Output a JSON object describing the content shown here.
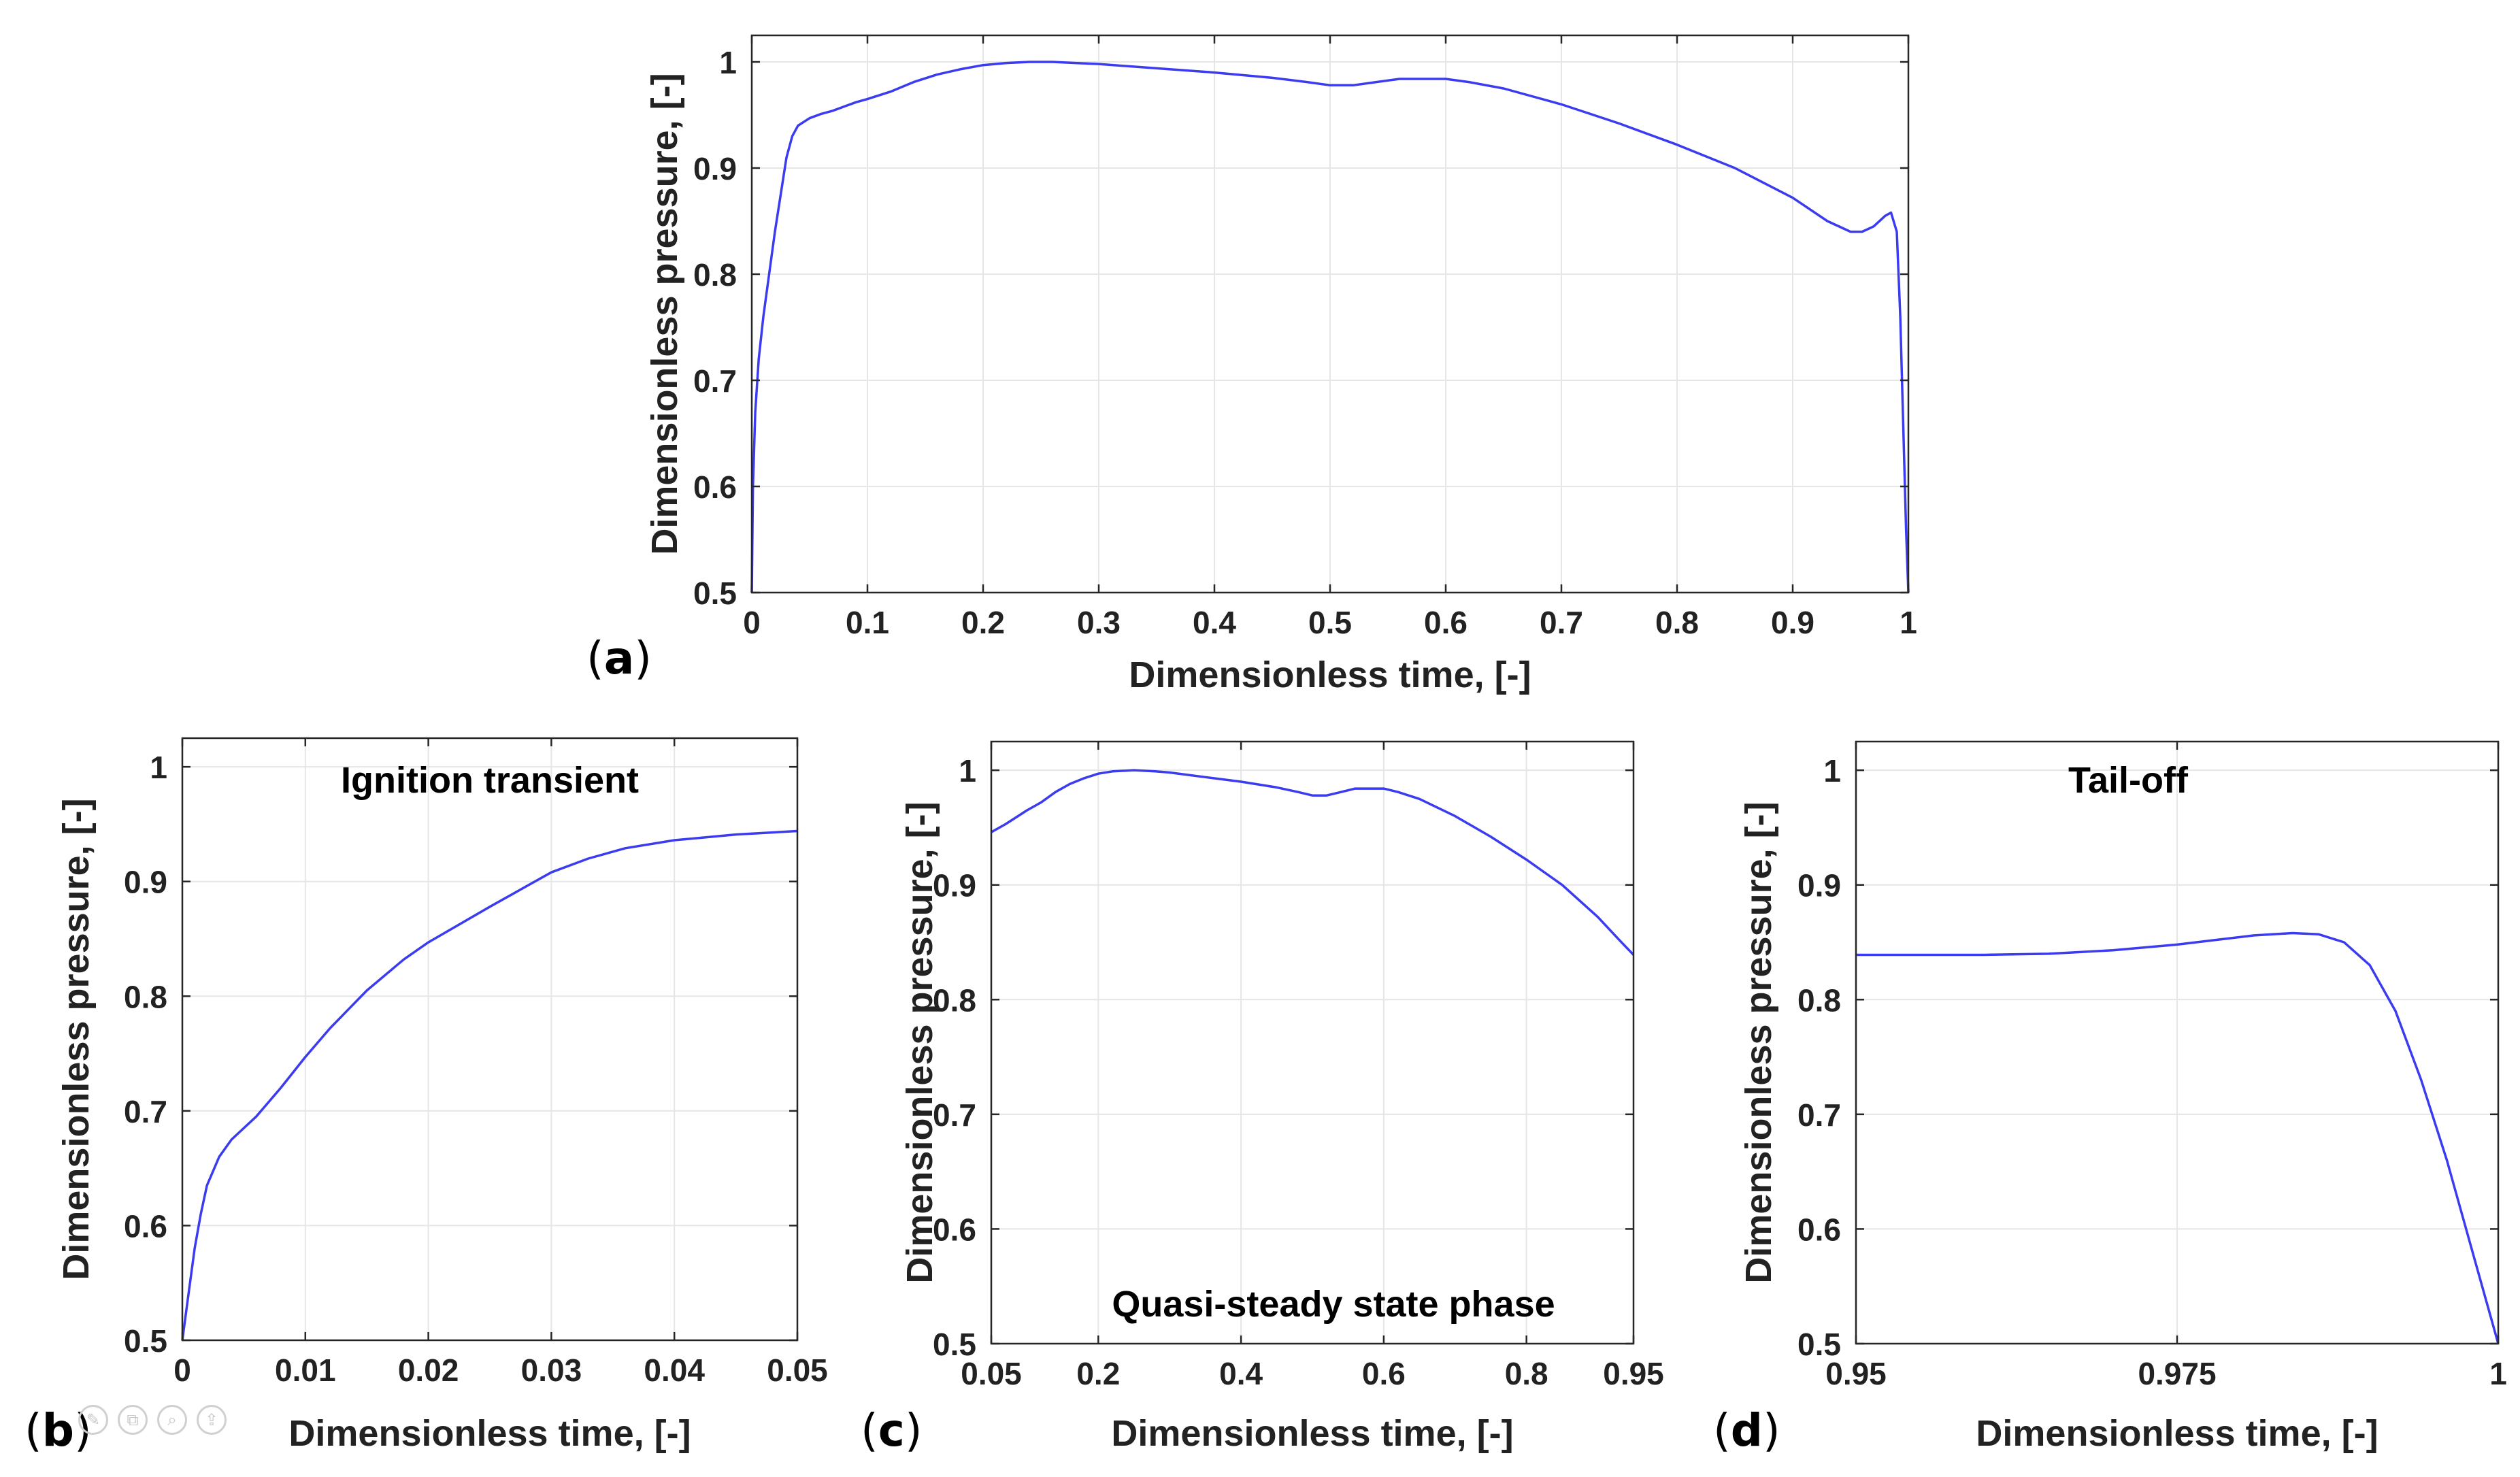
{
  "chart_data": [
    {
      "id": "a",
      "type": "line",
      "panel_label": "a",
      "title": "",
      "xlabel": "Dimensionless time, [-]",
      "ylabel": "Dimensionless pressure, [-]",
      "xlim": [
        0,
        1
      ],
      "ylim": [
        0.5,
        1.025
      ],
      "xticks": [
        0,
        0.1,
        0.2,
        0.3,
        0.4,
        0.5,
        0.6,
        0.7,
        0.8,
        0.9,
        1
      ],
      "xtick_labels": [
        "0",
        "0.1",
        "0.2",
        "0.3",
        "0.4",
        "0.5",
        "0.6",
        "0.7",
        "0.8",
        "0.9",
        "1"
      ],
      "yticks": [
        0.5,
        0.6,
        0.7,
        0.8,
        0.9,
        1
      ],
      "ytick_labels": [
        "0.5",
        "0.6",
        "0.7",
        "0.8",
        "0.9",
        "1"
      ],
      "grid": true,
      "annotation": "",
      "series": [
        {
          "name": "Dimensionless pressure",
          "color": "#3b3bf0",
          "x": [
            0,
            0.001,
            0.003,
            0.006,
            0.01,
            0.015,
            0.02,
            0.025,
            0.03,
            0.035,
            0.04,
            0.05,
            0.06,
            0.07,
            0.08,
            0.09,
            0.1,
            0.12,
            0.14,
            0.16,
            0.18,
            0.2,
            0.22,
            0.24,
            0.26,
            0.28,
            0.3,
            0.35,
            0.4,
            0.45,
            0.48,
            0.5,
            0.52,
            0.54,
            0.56,
            0.6,
            0.62,
            0.65,
            0.7,
            0.75,
            0.8,
            0.85,
            0.9,
            0.93,
            0.95,
            0.96,
            0.97,
            0.98,
            0.985,
            0.99,
            0.993,
            0.996,
            0.998,
            1.0
          ],
          "y": [
            0.5,
            0.6,
            0.67,
            0.72,
            0.76,
            0.8,
            0.84,
            0.875,
            0.91,
            0.93,
            0.94,
            0.947,
            0.951,
            0.954,
            0.958,
            0.962,
            0.965,
            0.972,
            0.981,
            0.988,
            0.993,
            0.997,
            0.999,
            1.0,
            1.0,
            0.999,
            0.998,
            0.994,
            0.99,
            0.985,
            0.981,
            0.978,
            0.978,
            0.981,
            0.984,
            0.984,
            0.981,
            0.975,
            0.96,
            0.942,
            0.922,
            0.9,
            0.872,
            0.85,
            0.84,
            0.84,
            0.845,
            0.855,
            0.858,
            0.84,
            0.76,
            0.64,
            0.56,
            0.5
          ]
        }
      ]
    },
    {
      "id": "b",
      "type": "line",
      "panel_label": "b",
      "title": "",
      "xlabel": "Dimensionless time, [-]",
      "ylabel": "Dimensionless pressure, [-]",
      "xlim": [
        0,
        0.05
      ],
      "ylim": [
        0.5,
        1.025
      ],
      "xticks": [
        0,
        0.01,
        0.02,
        0.03,
        0.04,
        0.05
      ],
      "xtick_labels": [
        "0",
        "0.01",
        "0.02",
        "0.03",
        "0.04",
        "0.05"
      ],
      "yticks": [
        0.5,
        0.6,
        0.7,
        0.8,
        0.9,
        1
      ],
      "ytick_labels": [
        "0.5",
        "0.6",
        "0.7",
        "0.8",
        "0.9",
        "1"
      ],
      "grid": true,
      "annotation": "Ignition transient",
      "series": [
        {
          "name": "Dimensionless pressure",
          "color": "#3b3bf0",
          "x": [
            0,
            0.0005,
            0.001,
            0.0015,
            0.002,
            0.003,
            0.004,
            0.005,
            0.006,
            0.008,
            0.01,
            0.012,
            0.015,
            0.018,
            0.02,
            0.025,
            0.03,
            0.033,
            0.036,
            0.04,
            0.045,
            0.05
          ],
          "y": [
            0.5,
            0.54,
            0.58,
            0.61,
            0.635,
            0.66,
            0.675,
            0.685,
            0.695,
            0.72,
            0.747,
            0.772,
            0.805,
            0.832,
            0.847,
            0.878,
            0.908,
            0.92,
            0.929,
            0.936,
            0.941,
            0.944
          ]
        }
      ]
    },
    {
      "id": "c",
      "type": "line",
      "panel_label": "c",
      "title": "",
      "xlabel": "Dimensionless time, [-]",
      "ylabel": "Dimensionless pressure, [-]",
      "xlim": [
        0.05,
        0.95
      ],
      "ylim": [
        0.5,
        1.025
      ],
      "xticks": [
        0.05,
        0.2,
        0.4,
        0.6,
        0.8,
        0.95
      ],
      "xtick_labels": [
        "0.05",
        "0.2",
        "0.4",
        "0.6",
        "0.8",
        "0.95"
      ],
      "yticks": [
        0.5,
        0.6,
        0.7,
        0.8,
        0.9,
        1
      ],
      "ytick_labels": [
        "0.5",
        "0.6",
        "0.7",
        "0.8",
        "0.9",
        "1"
      ],
      "grid": true,
      "annotation": "Quasi-steady state phase",
      "series": [
        {
          "name": "Dimensionless pressure",
          "color": "#3b3bf0",
          "x": [
            0.05,
            0.07,
            0.08,
            0.1,
            0.12,
            0.14,
            0.16,
            0.18,
            0.2,
            0.22,
            0.25,
            0.28,
            0.3,
            0.35,
            0.4,
            0.45,
            0.48,
            0.5,
            0.52,
            0.54,
            0.56,
            0.6,
            0.62,
            0.65,
            0.7,
            0.75,
            0.8,
            0.85,
            0.9,
            0.93,
            0.95
          ],
          "y": [
            0.946,
            0.953,
            0.957,
            0.965,
            0.972,
            0.981,
            0.988,
            0.993,
            0.997,
            0.999,
            1.0,
            0.999,
            0.998,
            0.994,
            0.99,
            0.985,
            0.981,
            0.978,
            0.978,
            0.981,
            0.984,
            0.984,
            0.981,
            0.975,
            0.96,
            0.942,
            0.922,
            0.9,
            0.872,
            0.852,
            0.839
          ]
        }
      ]
    },
    {
      "id": "d",
      "type": "line",
      "panel_label": "d",
      "title": "",
      "xlabel": "Dimensionless time, [-]",
      "ylabel": "Dimensionless pressure, [-]",
      "xlim": [
        0.95,
        1
      ],
      "ylim": [
        0.5,
        1.025
      ],
      "xticks": [
        0.95,
        0.975,
        1
      ],
      "xtick_labels": [
        "0.95",
        "0.975",
        "1"
      ],
      "yticks": [
        0.5,
        0.6,
        0.7,
        0.8,
        0.9,
        1
      ],
      "ytick_labels": [
        "0.5",
        "0.6",
        "0.7",
        "0.8",
        "0.9",
        "1"
      ],
      "grid": true,
      "annotation": "Tail-off",
      "series": [
        {
          "name": "Dimensionless pressure",
          "color": "#3b3bf0",
          "x": [
            0.95,
            0.955,
            0.96,
            0.965,
            0.97,
            0.975,
            0.978,
            0.981,
            0.984,
            0.986,
            0.988,
            0.99,
            0.992,
            0.994,
            0.996,
            0.998,
            1.0
          ],
          "y": [
            0.839,
            0.839,
            0.839,
            0.84,
            0.843,
            0.848,
            0.852,
            0.856,
            0.858,
            0.857,
            0.85,
            0.83,
            0.79,
            0.73,
            0.66,
            0.58,
            0.5
          ]
        }
      ]
    }
  ],
  "layout_overlay": {
    "icons": [
      "pencil-icon",
      "copy-icon",
      "zoom-icon",
      "share-icon"
    ],
    "icon_glyphs": [
      "✎",
      "⧉",
      "⌕",
      "⇪"
    ]
  }
}
